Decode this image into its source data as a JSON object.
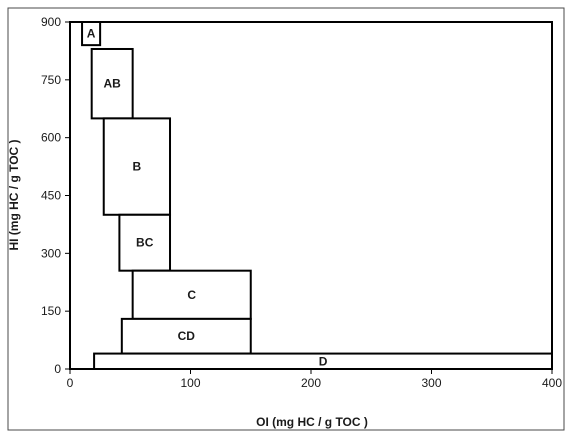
{
  "chart_data": {
    "type": "bar",
    "title": "",
    "xlabel": "OI (mg HC / g TOC )",
    "ylabel": "HI (mg HC / g TOC )",
    "xlim": [
      0,
      400
    ],
    "ylim": [
      0,
      900
    ],
    "x_ticks": [
      0,
      100,
      200,
      300,
      400
    ],
    "y_ticks": [
      0,
      150,
      300,
      450,
      600,
      750,
      900
    ],
    "grid": false,
    "legend": "none",
    "colors": {
      "stroke": "#000000",
      "fill": "#ffffff",
      "text": "#1a1a1a",
      "frame": "#4a4a4a"
    },
    "regions": [
      {
        "label": "A",
        "x": [
          10,
          25
        ],
        "y": [
          840,
          900
        ]
      },
      {
        "label": "AB",
        "x": [
          18,
          52
        ],
        "y": [
          650,
          830
        ]
      },
      {
        "label": "B",
        "x": [
          28,
          83
        ],
        "y": [
          400,
          650
        ]
      },
      {
        "label": "BC",
        "x": [
          41,
          83
        ],
        "y": [
          255,
          400
        ]
      },
      {
        "label": "C",
        "x": [
          52,
          150
        ],
        "y": [
          130,
          255
        ]
      },
      {
        "label": "CD",
        "x": [
          43,
          150
        ],
        "y": [
          40,
          130
        ]
      },
      {
        "label": "D",
        "x": [
          20,
          400
        ],
        "y": [
          0,
          40
        ]
      }
    ]
  }
}
